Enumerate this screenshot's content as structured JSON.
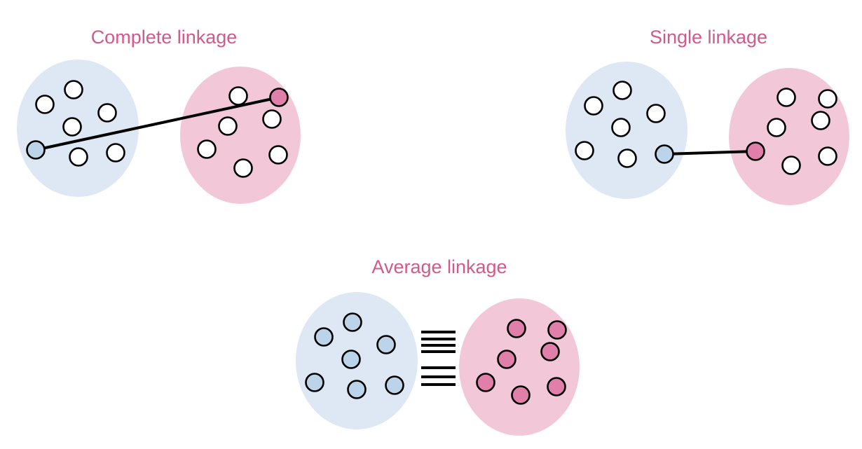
{
  "titles": {
    "complete": "Complete linkage",
    "single": "Single linkage",
    "average": "Average linkage"
  },
  "colors": {
    "title": "#d05a8c",
    "blue_cluster": "#dde8f4",
    "pink_cluster": "#f2c8d9",
    "blue_point": "#bcd4ea",
    "pink_point": "#e07fa9",
    "empty_point": "#ffffff",
    "line": "#000000"
  },
  "panels": [
    {
      "id": "complete",
      "blue_points": 7,
      "pink_points": 7,
      "highlight": "farthest-pair",
      "connector": "single-line"
    },
    {
      "id": "single",
      "blue_points": 7,
      "pink_points": 7,
      "highlight": "closest-pair",
      "connector": "single-line"
    },
    {
      "id": "average",
      "blue_points": 7,
      "pink_points": 7,
      "highlight": "all-points",
      "connector": "many-lines"
    }
  ]
}
